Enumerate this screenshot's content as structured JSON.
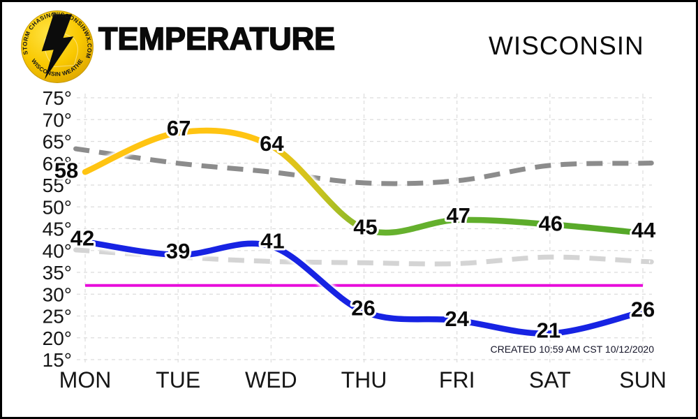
{
  "header": {
    "title": "TEMPERATURE",
    "region": "WISCONSIN",
    "logo": {
      "arc_top_left": "STORM CHASING",
      "arc_top_right": "WISCONSINWX.COM",
      "arc_bottom": "WISCONSIN WEATHER",
      "icon": "lightning-bolt",
      "circle_color": "#f7c600"
    }
  },
  "created_note": "CREATED 10:59 AM CST 10/12/2020",
  "colors": {
    "high_line_yellow": "#ffc412",
    "high_line_green": "#54a728",
    "low_line_blue": "#1723e3",
    "normal_high_gray": "#8c8c8c",
    "normal_low_gray": "#d4d4d4",
    "freezing_magenta": "#e80cdb",
    "gridline": "#dcdcdc",
    "label_text": "#0a0a0a"
  },
  "chart_data": {
    "type": "line",
    "title": "TEMPERATURE",
    "region": "WISCONSIN",
    "categories": [
      "MON",
      "TUE",
      "WED",
      "THU",
      "FRI",
      "SAT",
      "SUN"
    ],
    "y_tick_labels": [
      "75°",
      "70°",
      "65°",
      "60°",
      "55°",
      "50°",
      "45°",
      "40°",
      "35°",
      "30°",
      "25°",
      "20°",
      "15°"
    ],
    "ylim": [
      15,
      75
    ],
    "y_tick_step": 5,
    "grid": true,
    "legend": "none",
    "series": [
      {
        "name": "forecast-high",
        "values": [
          58,
          67,
          64,
          45,
          47,
          46,
          44
        ],
        "style": "solid",
        "gradient_stops": [
          [
            0,
            "#ffc412"
          ],
          [
            0.31,
            "#ffc412"
          ],
          [
            0.42,
            "#c9c31e"
          ],
          [
            0.52,
            "#68b22e"
          ],
          [
            1,
            "#54a728"
          ]
        ],
        "labeled": true,
        "label_dx": [
          -27,
          1,
          1,
          2,
          2,
          1,
          1
        ],
        "label_dy": [
          8,
          4,
          7,
          8,
          4,
          9,
          6
        ]
      },
      {
        "name": "forecast-low",
        "values": [
          42,
          39,
          41,
          26,
          24,
          21,
          26
        ],
        "style": "solid",
        "color": "#1723e3",
        "labeled": true,
        "label_dx": [
          -4,
          0,
          2,
          -1,
          0,
          -2,
          0
        ],
        "label_dy": [
          5,
          5,
          3,
          5,
          8,
          6,
          7
        ]
      },
      {
        "name": "normal-high",
        "values": [
          63,
          60,
          58,
          55.5,
          56,
          59.5,
          60
        ],
        "style": "dashed",
        "color": "#8c8c8c",
        "labeled": false
      },
      {
        "name": "normal-low",
        "values": [
          40,
          38.5,
          37.5,
          37.2,
          37,
          38.5,
          37.5
        ],
        "style": "dashed",
        "color": "#d4d4d4",
        "labeled": false
      }
    ],
    "freezing_line": {
      "value": 32,
      "color": "#e80cdb"
    }
  }
}
